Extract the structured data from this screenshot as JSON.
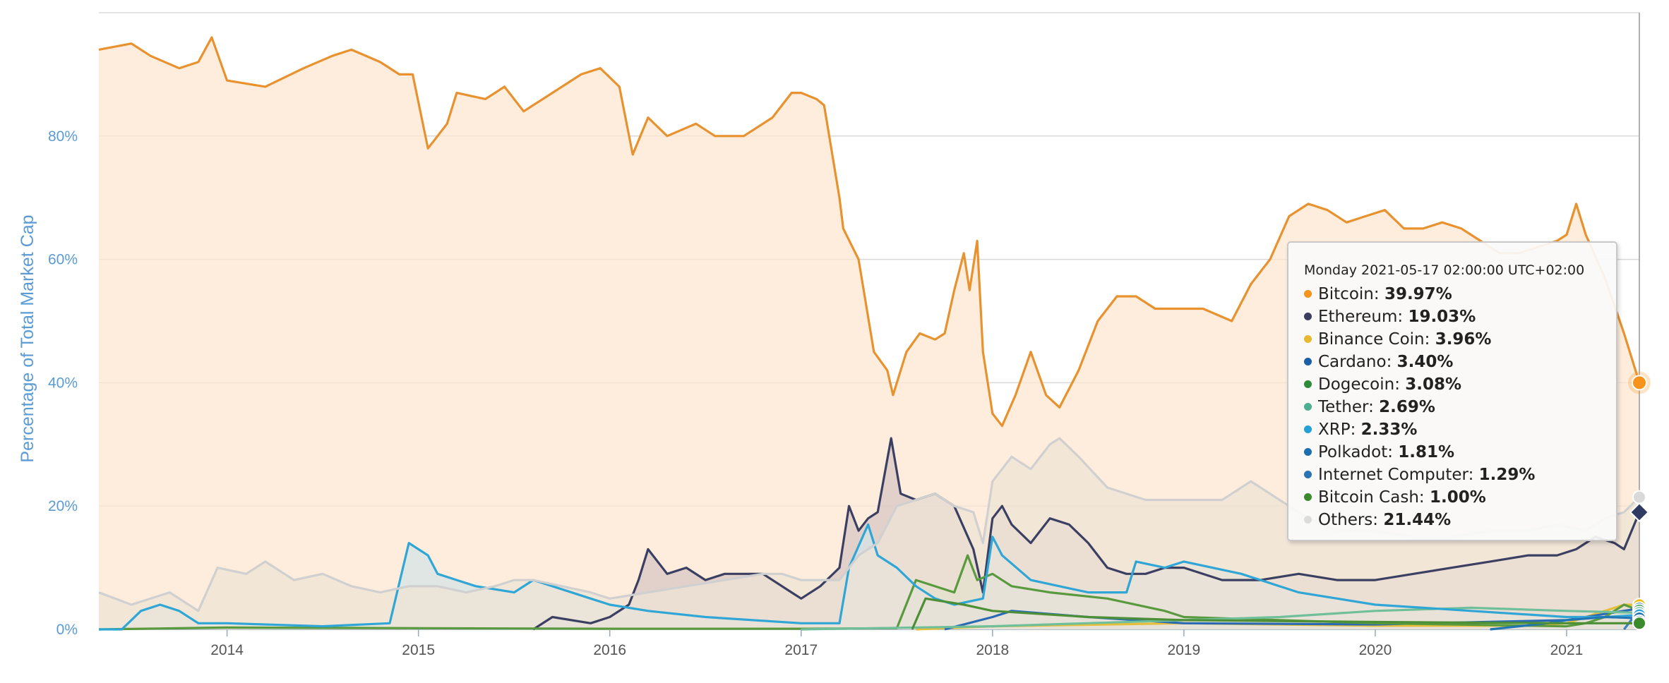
{
  "chart_data": {
    "type": "area",
    "ylabel": "Percentage of Total Market Cap",
    "xlabel": "",
    "ylim": [
      0,
      100
    ],
    "y_ticks": [
      "0%",
      "20%",
      "40%",
      "60%",
      "80%"
    ],
    "y_tick_values": [
      0,
      20,
      40,
      60,
      80
    ],
    "x_ticks": [
      "2014",
      "2015",
      "2016",
      "2017",
      "2018",
      "2019",
      "2020",
      "2021"
    ],
    "x_tick_values": [
      2014,
      2015,
      2016,
      2017,
      2018,
      2019,
      2020,
      2021
    ],
    "x_range": [
      2013.33,
      2021.38
    ],
    "grid": "horizontal",
    "series": [
      {
        "name": "Bitcoin",
        "color": "#f7931a",
        "stroke": "#e8922f",
        "fill": "#fde7d0",
        "x": [
          2013.33,
          2013.5,
          2013.6,
          2013.75,
          2013.85,
          2013.92,
          2014.0,
          2014.2,
          2014.4,
          2014.55,
          2014.65,
          2014.8,
          2014.9,
          2014.97,
          2015.05,
          2015.15,
          2015.2,
          2015.35,
          2015.45,
          2015.55,
          2015.7,
          2015.85,
          2015.95,
          2016.05,
          2016.12,
          2016.2,
          2016.3,
          2016.45,
          2016.55,
          2016.7,
          2016.85,
          2016.95,
          2017.0,
          2017.08,
          2017.12,
          2017.2,
          2017.22,
          2017.3,
          2017.38,
          2017.45,
          2017.48,
          2017.55,
          2017.62,
          2017.7,
          2017.75,
          2017.8,
          2017.85,
          2017.88,
          2017.92,
          2017.95,
          2018.0,
          2018.05,
          2018.12,
          2018.2,
          2018.28,
          2018.35,
          2018.45,
          2018.55,
          2018.65,
          2018.75,
          2018.85,
          2019.0,
          2019.1,
          2019.25,
          2019.35,
          2019.45,
          2019.55,
          2019.65,
          2019.75,
          2019.85,
          2019.95,
          2020.05,
          2020.15,
          2020.25,
          2020.35,
          2020.45,
          2020.55,
          2020.65,
          2020.75,
          2020.85,
          2020.95,
          2021.0,
          2021.05,
          2021.1,
          2021.2,
          2021.3,
          2021.38
        ],
        "y": [
          94,
          95,
          93,
          91,
          92,
          96,
          89,
          88,
          91,
          93,
          94,
          92,
          90,
          90,
          78,
          82,
          87,
          86,
          88,
          84,
          87,
          90,
          91,
          88,
          77,
          83,
          80,
          82,
          80,
          80,
          83,
          87,
          87,
          86,
          85,
          70,
          65,
          60,
          45,
          42,
          38,
          45,
          48,
          47,
          48,
          55,
          61,
          55,
          63,
          45,
          35,
          33,
          38,
          45,
          38,
          36,
          42,
          50,
          54,
          54,
          52,
          52,
          52,
          50,
          56,
          60,
          67,
          69,
          68,
          66,
          67,
          68,
          65,
          65,
          66,
          65,
          63,
          61,
          61,
          62,
          63,
          64,
          69,
          64,
          57,
          48,
          40
        ]
      },
      {
        "name": "Ethereum",
        "color": "#2f3a62",
        "stroke": "#3b3f62",
        "fill": "#d8c7c4",
        "x": [
          2015.6,
          2015.7,
          2015.9,
          2016.0,
          2016.1,
          2016.15,
          2016.2,
          2016.3,
          2016.4,
          2016.5,
          2016.6,
          2016.8,
          2016.95,
          2017.0,
          2017.1,
          2017.2,
          2017.25,
          2017.3,
          2017.35,
          2017.4,
          2017.47,
          2017.52,
          2017.6,
          2017.7,
          2017.8,
          2017.9,
          2017.95,
          2018.0,
          2018.05,
          2018.1,
          2018.2,
          2018.3,
          2018.4,
          2018.5,
          2018.6,
          2018.7,
          2018.8,
          2018.9,
          2019.0,
          2019.2,
          2019.4,
          2019.6,
          2019.8,
          2020.0,
          2020.2,
          2020.4,
          2020.6,
          2020.8,
          2020.95,
          2021.05,
          2021.15,
          2021.25,
          2021.3,
          2021.38
        ],
        "x_note": "",
        "y": [
          0,
          2,
          1,
          2,
          4,
          8,
          13,
          9,
          10,
          8,
          9,
          9,
          6,
          5,
          7,
          10,
          20,
          16,
          18,
          19,
          31,
          22,
          21,
          22,
          20,
          13,
          6,
          18,
          20,
          17,
          14,
          18,
          17,
          14,
          10,
          9,
          9,
          10,
          10,
          8,
          8,
          9,
          8,
          8,
          9,
          10,
          11,
          12,
          12,
          13,
          15,
          14,
          13,
          19
        ]
      },
      {
        "name": "Binance Coin",
        "color": "#f0b90b",
        "stroke": "#e6be3a",
        "fill": "none",
        "x": [
          2017.6,
          2018.0,
          2019.0,
          2020.0,
          2020.8,
          2021.0,
          2021.2,
          2021.3,
          2021.38
        ],
        "y": [
          0,
          0.5,
          1,
          0.6,
          0.6,
          1,
          3,
          4,
          3.96
        ]
      },
      {
        "name": "Cardano",
        "color": "#1a5fa8",
        "stroke": "#2a6ab5",
        "fill": "none",
        "x": [
          2017.75,
          2018.0,
          2018.1,
          2018.5,
          2019.0,
          2020.0,
          2021.0,
          2021.2,
          2021.38
        ],
        "y": [
          0,
          2,
          3,
          2,
          1,
          0.8,
          1.5,
          2.5,
          3.4
        ]
      },
      {
        "name": "Dogecoin",
        "color": "#2e8b3a",
        "stroke": "#5a9a3e",
        "fill": "#c7d7b5",
        "x": [
          2013.33,
          2014.0,
          2015.0,
          2016.0,
          2017.0,
          2017.5,
          2017.6,
          2017.8,
          2017.87,
          2017.92,
          2018.0,
          2018.1,
          2018.3,
          2018.6,
          2018.9,
          2019.0,
          2019.5,
          2020.0,
          2021.0,
          2021.1,
          2021.2,
          2021.3,
          2021.38
        ],
        "y": [
          0,
          0.3,
          0.2,
          0.1,
          0.1,
          0.2,
          8,
          6,
          12,
          8,
          9,
          7,
          6,
          5,
          3,
          2,
          1.5,
          1,
          0.5,
          1,
          2,
          4,
          3.08
        ]
      },
      {
        "name": "Tether",
        "color": "#4caf8f",
        "stroke": "#6fbf9a",
        "fill": "none",
        "x": [
          2017.0,
          2018.0,
          2019.0,
          2019.5,
          2020.0,
          2020.5,
          2021.0,
          2021.38
        ],
        "y": [
          0,
          0.5,
          1.5,
          2,
          3,
          3.5,
          3,
          2.69
        ]
      },
      {
        "name": "XRP",
        "color": "#23a0d8",
        "stroke": "#2fa6d6",
        "fill": "#d6e3e6",
        "x": [
          2013.33,
          2013.45,
          2013.55,
          2013.65,
          2013.75,
          2013.85,
          2014.0,
          2014.5,
          2014.85,
          2014.95,
          2015.05,
          2015.1,
          2015.2,
          2015.3,
          2015.5,
          2015.6,
          2015.7,
          2015.9,
          2016.0,
          2016.2,
          2016.5,
          2017.0,
          2017.2,
          2017.25,
          2017.35,
          2017.4,
          2017.5,
          2017.6,
          2017.7,
          2017.8,
          2017.95,
          2018.0,
          2018.05,
          2018.2,
          2018.5,
          2018.7,
          2018.75,
          2018.9,
          2019.0,
          2019.3,
          2019.6,
          2020.0,
          2020.5,
          2021.0,
          2021.2,
          2021.38
        ],
        "y": [
          0,
          0,
          3,
          4,
          3,
          1,
          1,
          0.5,
          1,
          14,
          12,
          9,
          8,
          7,
          6,
          8,
          7,
          5,
          4,
          3,
          2,
          1,
          1,
          10,
          17,
          12,
          10,
          7,
          5,
          4,
          5,
          15,
          12,
          8,
          6,
          6,
          11,
          10,
          11,
          9,
          6,
          4,
          3,
          2,
          2,
          2.33
        ]
      },
      {
        "name": "Polkadot",
        "color": "#1b6fb0",
        "stroke": "#2275b5",
        "fill": "none",
        "x": [
          2020.6,
          2020.9,
          2021.0,
          2021.2,
          2021.38
        ],
        "y": [
          0,
          1,
          1.5,
          2,
          1.81
        ]
      },
      {
        "name": "Internet Computer",
        "color": "#2a73b5",
        "stroke": "#3a7fc0",
        "fill": "none",
        "x": [
          2021.3,
          2021.35,
          2021.38
        ],
        "y": [
          0,
          2,
          1.29
        ]
      },
      {
        "name": "Bitcoin Cash",
        "color": "#3b8a2e",
        "stroke": "#4c8f36",
        "fill": "none",
        "x": [
          2017.58,
          2017.65,
          2017.85,
          2018.0,
          2018.5,
          2019.0,
          2020.0,
          2021.0,
          2021.38
        ],
        "y": [
          0,
          5,
          4,
          3,
          2,
          1.5,
          1.2,
          1,
          1.0
        ]
      },
      {
        "name": "Others",
        "color": "#d9d9d9",
        "stroke": "#d0d0d0",
        "fill": "#ede3d6",
        "x": [
          2013.33,
          2013.5,
          2013.7,
          2013.85,
          2013.95,
          2014.1,
          2014.2,
          2014.35,
          2014.5,
          2014.65,
          2014.8,
          2014.95,
          2015.1,
          2015.25,
          2015.4,
          2015.5,
          2015.6,
          2015.75,
          2015.9,
          2016.0,
          2016.2,
          2016.4,
          2016.6,
          2016.8,
          2016.9,
          2017.0,
          2017.1,
          2017.2,
          2017.3,
          2017.4,
          2017.5,
          2017.6,
          2017.7,
          2017.8,
          2017.9,
          2017.95,
          2018.0,
          2018.1,
          2018.2,
          2018.3,
          2018.35,
          2018.45,
          2018.6,
          2018.8,
          2019.0,
          2019.2,
          2019.35,
          2019.5,
          2019.65,
          2019.8,
          2020.0,
          2020.2,
          2020.4,
          2020.6,
          2020.8,
          2020.95,
          2021.1,
          2021.2,
          2021.3,
          2021.38
        ],
        "y": [
          6,
          4,
          6,
          3,
          10,
          9,
          11,
          8,
          9,
          7,
          6,
          7,
          7,
          6,
          7,
          8,
          8,
          7,
          6,
          5,
          6,
          7,
          8,
          9,
          9,
          8,
          8,
          8,
          12,
          14,
          20,
          21,
          22,
          20,
          19,
          14,
          24,
          28,
          26,
          30,
          31,
          28,
          23,
          21,
          21,
          21,
          24,
          21,
          18,
          16,
          16,
          15,
          15,
          16,
          16,
          17,
          16,
          18,
          19,
          21.44
        ]
      }
    ],
    "tooltip": {
      "header": "Monday 2021-05-17 02:00:00 UTC+02:00",
      "rows": [
        {
          "name": "Bitcoin",
          "value": "39.97%",
          "color": "#f7931a"
        },
        {
          "name": "Ethereum",
          "value": "19.03%",
          "color": "#3c3c60"
        },
        {
          "name": "Binance Coin",
          "value": "3.96%",
          "color": "#e8b830"
        },
        {
          "name": "Cardano",
          "value": "3.40%",
          "color": "#1a5fa8"
        },
        {
          "name": "Dogecoin",
          "value": "3.08%",
          "color": "#2e8b3a"
        },
        {
          "name": "Tether",
          "value": "2.69%",
          "color": "#4caf8f"
        },
        {
          "name": "XRP",
          "value": "2.33%",
          "color": "#23a0d8"
        },
        {
          "name": "Polkadot",
          "value": "1.81%",
          "color": "#1b6fb0"
        },
        {
          "name": "Internet Computer",
          "value": "1.29%",
          "color": "#2a73b5"
        },
        {
          "name": "Bitcoin Cash",
          "value": "1.00%",
          "color": "#3b8a2e"
        },
        {
          "name": "Others",
          "value": "21.44%",
          "color": "#dcdcdc"
        }
      ]
    }
  }
}
